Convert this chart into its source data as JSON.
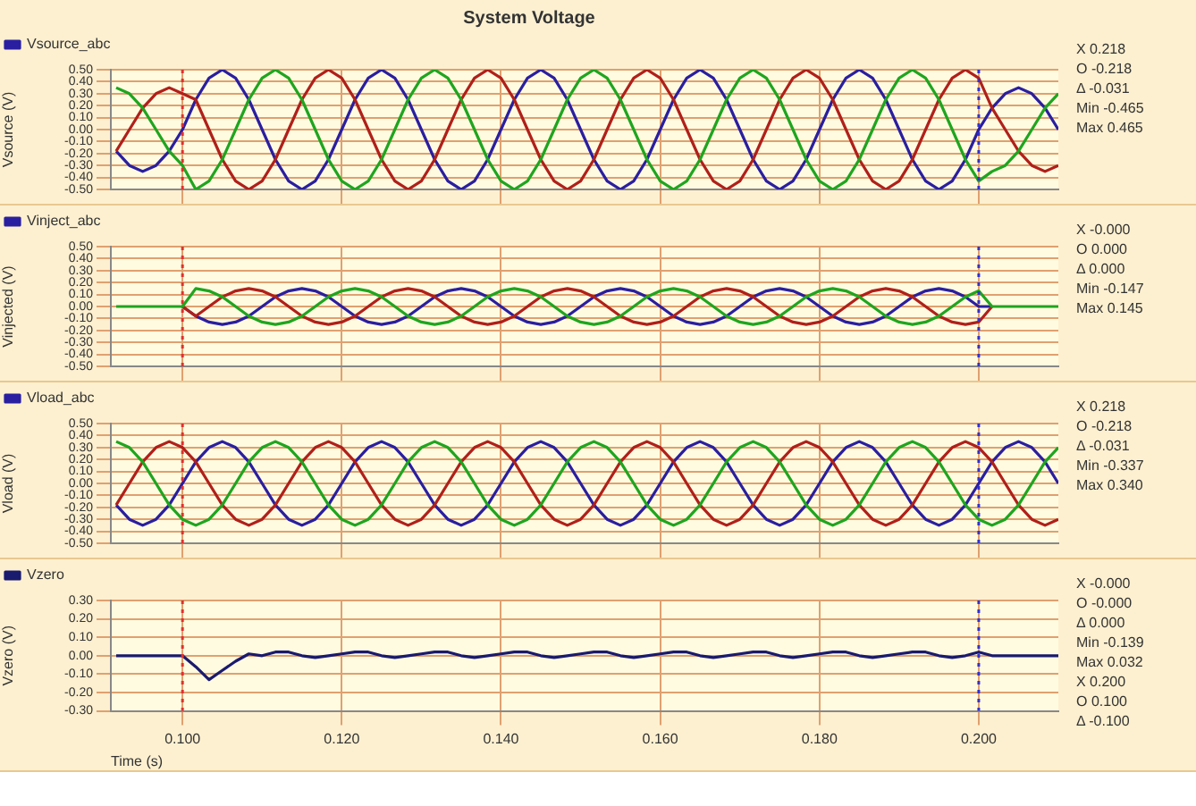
{
  "chart_data": [
    {
      "type": "line",
      "title": "System Voltage",
      "ylabel": "Vsource (V)",
      "legend": "top left",
      "grid": true,
      "marker": "none",
      "tick_labels": "y",
      "xlim": [
        0.091,
        0.21
      ],
      "xticks": [
        {
          "value": 0.1,
          "label": null
        },
        {
          "value": 0.12,
          "label": null
        },
        {
          "value": 0.14,
          "label": null
        },
        {
          "value": 0.16,
          "label": null
        },
        {
          "value": 0.18,
          "label": null
        },
        {
          "value": 0.2,
          "label": null
        }
      ],
      "ylim": [
        -0.5,
        0.5
      ],
      "yticks": [
        {
          "value": -0.5,
          "label": "-0.50"
        },
        {
          "value": -0.4,
          "label": "-0.40"
        },
        {
          "value": -0.3,
          "label": "-0.30"
        },
        {
          "value": -0.2,
          "label": "-0.20"
        },
        {
          "value": -0.1,
          "label": "-0.10"
        },
        {
          "value": 0,
          "label": "0.00"
        },
        {
          "value": 0.1,
          "label": "0.10"
        },
        {
          "value": 0.2,
          "label": "0.20"
        },
        {
          "value": 0.3,
          "label": "0.30"
        },
        {
          "value": 0.4,
          "label": "0.40"
        },
        {
          "value": 0.5,
          "label": "0.50"
        }
      ],
      "ref_lines": [
        {
          "axis": "x",
          "value": 0.1,
          "color": "#e03030",
          "line_style": "dotted"
        },
        {
          "axis": "x",
          "value": 0.2,
          "color": "#3030d0",
          "line_style": "dotted"
        }
      ],
      "annotations": [
        "X 0.218",
        "O -0.218",
        "Δ -0.031",
        "Min -0.465",
        "Max 0.465"
      ],
      "x": [
        0.09167,
        0.09333,
        0.095,
        0.09667,
        0.09833,
        0.1,
        0.10167,
        0.10333,
        0.105,
        0.10667,
        0.10833,
        0.11,
        0.11167,
        0.11333,
        0.115,
        0.11667,
        0.11833,
        0.12,
        0.12167,
        0.12333,
        0.125,
        0.12667,
        0.12833,
        0.13,
        0.13167,
        0.13333,
        0.135,
        0.13667,
        0.13833,
        0.14,
        0.14167,
        0.14333,
        0.145,
        0.14667,
        0.14833,
        0.15,
        0.15167,
        0.15333,
        0.155,
        0.15667,
        0.15833,
        0.16,
        0.16167,
        0.16333,
        0.165,
        0.16667,
        0.16833,
        0.17,
        0.17167,
        0.17333,
        0.175,
        0.17667,
        0.17833,
        0.18,
        0.18167,
        0.18333,
        0.185,
        0.18667,
        0.18833,
        0.19,
        0.19167,
        0.19333,
        0.195,
        0.19667,
        0.19833,
        0.2,
        0.20167,
        0.20333,
        0.205,
        0.20667,
        0.20833,
        0.21
      ],
      "series": [
        {
          "name": "Vsource_abc",
          "color": "#2a1fa0",
          "values": [
            -0.18,
            -0.3,
            -0.35,
            -0.3,
            -0.18,
            0,
            0.25,
            0.43,
            0.5,
            0.43,
            0.25,
            0,
            -0.25,
            -0.43,
            -0.5,
            -0.43,
            -0.25,
            0,
            0.25,
            0.43,
            0.5,
            0.43,
            0.25,
            0,
            -0.25,
            -0.43,
            -0.5,
            -0.43,
            -0.25,
            0,
            0.25,
            0.43,
            0.5,
            0.43,
            0.25,
            0,
            -0.25,
            -0.43,
            -0.5,
            -0.43,
            -0.25,
            0,
            0.25,
            0.43,
            0.5,
            0.43,
            0.25,
            0,
            -0.25,
            -0.43,
            -0.5,
            -0.43,
            -0.25,
            0,
            0.25,
            0.43,
            0.5,
            0.43,
            0.25,
            0,
            -0.25,
            -0.43,
            -0.5,
            -0.43,
            -0.25,
            0,
            0.18,
            0.3,
            0.35,
            0.3,
            0.18,
            0
          ]
        },
        {
          "color": "#b0201a",
          "values": [
            -0.18,
            0,
            0.18,
            0.3,
            0.35,
            0.3,
            0.25,
            0,
            -0.25,
            -0.43,
            -0.5,
            -0.43,
            -0.25,
            0,
            0.25,
            0.43,
            0.5,
            0.43,
            0.25,
            0,
            -0.25,
            -0.43,
            -0.5,
            -0.43,
            -0.25,
            0,
            0.25,
            0.43,
            0.5,
            0.43,
            0.25,
            0,
            -0.25,
            -0.43,
            -0.5,
            -0.43,
            -0.25,
            0,
            0.25,
            0.43,
            0.5,
            0.43,
            0.25,
            0,
            -0.25,
            -0.43,
            -0.5,
            -0.43,
            -0.25,
            0,
            0.25,
            0.43,
            0.5,
            0.43,
            0.25,
            0,
            -0.25,
            -0.43,
            -0.5,
            -0.43,
            -0.25,
            0,
            0.25,
            0.43,
            0.5,
            0.43,
            0.18,
            0,
            -0.18,
            -0.3,
            -0.35,
            -0.3
          ]
        },
        {
          "color": "#1fa51f",
          "values": [
            0.35,
            0.3,
            0.18,
            0,
            -0.18,
            -0.3,
            -0.5,
            -0.43,
            -0.25,
            0,
            0.25,
            0.43,
            0.5,
            0.43,
            0.25,
            0,
            -0.25,
            -0.43,
            -0.5,
            -0.43,
            -0.25,
            0,
            0.25,
            0.43,
            0.5,
            0.43,
            0.25,
            0,
            -0.25,
            -0.43,
            -0.5,
            -0.43,
            -0.25,
            0,
            0.25,
            0.43,
            0.5,
            0.43,
            0.25,
            0,
            -0.25,
            -0.43,
            -0.5,
            -0.43,
            -0.25,
            0,
            0.25,
            0.43,
            0.5,
            0.43,
            0.25,
            0,
            -0.25,
            -0.43,
            -0.5,
            -0.43,
            -0.25,
            0,
            0.25,
            0.43,
            0.5,
            0.43,
            0.25,
            0,
            -0.25,
            -0.43,
            -0.35,
            -0.3,
            -0.18,
            0,
            0.18,
            0.3
          ]
        }
      ]
    },
    {
      "type": "line",
      "ylabel": "Vinjected (V)",
      "legend": "top left",
      "grid": true,
      "marker": "none",
      "tick_labels": "y",
      "xlim": [
        0.091,
        0.21
      ],
      "xticks": [
        {
          "value": 0.1,
          "label": null
        },
        {
          "value": 0.12,
          "label": null
        },
        {
          "value": 0.14,
          "label": null
        },
        {
          "value": 0.16,
          "label": null
        },
        {
          "value": 0.18,
          "label": null
        },
        {
          "value": 0.2,
          "label": null
        }
      ],
      "ylim": [
        -0.5,
        0.5
      ],
      "yticks": [
        {
          "value": -0.5,
          "label": "-0.50"
        },
        {
          "value": -0.4,
          "label": "-0.40"
        },
        {
          "value": -0.3,
          "label": "-0.30"
        },
        {
          "value": -0.2,
          "label": "-0.20"
        },
        {
          "value": -0.1,
          "label": "-0.10"
        },
        {
          "value": 0,
          "label": "0.00"
        },
        {
          "value": 0.1,
          "label": "0.10"
        },
        {
          "value": 0.2,
          "label": "0.20"
        },
        {
          "value": 0.3,
          "label": "0.30"
        },
        {
          "value": 0.4,
          "label": "0.40"
        },
        {
          "value": 0.5,
          "label": "0.50"
        }
      ],
      "ref_lines": [
        {
          "axis": "x",
          "value": 0.1,
          "color": "#e03030",
          "line_style": "dotted"
        },
        {
          "axis": "x",
          "value": 0.2,
          "color": "#3030d0",
          "line_style": "dotted"
        }
      ],
      "annotations": [
        "X -0.000",
        "O 0.000",
        "Δ 0.000",
        "Min -0.147",
        "Max 0.145"
      ],
      "x": [
        0.09167,
        0.09333,
        0.095,
        0.09667,
        0.09833,
        0.1,
        0.10167,
        0.10333,
        0.105,
        0.10667,
        0.10833,
        0.11,
        0.11167,
        0.11333,
        0.115,
        0.11667,
        0.11833,
        0.12,
        0.12167,
        0.12333,
        0.125,
        0.12667,
        0.12833,
        0.13,
        0.13167,
        0.13333,
        0.135,
        0.13667,
        0.13833,
        0.14,
        0.14167,
        0.14333,
        0.145,
        0.14667,
        0.14833,
        0.15,
        0.15167,
        0.15333,
        0.155,
        0.15667,
        0.15833,
        0.16,
        0.16167,
        0.16333,
        0.165,
        0.16667,
        0.16833,
        0.17,
        0.17167,
        0.17333,
        0.175,
        0.17667,
        0.17833,
        0.18,
        0.18167,
        0.18333,
        0.185,
        0.18667,
        0.18833,
        0.19,
        0.19167,
        0.19333,
        0.195,
        0.19667,
        0.19833,
        0.2,
        0.20167,
        0.20333,
        0.205,
        0.20667,
        0.20833,
        0.21
      ],
      "series": [
        {
          "name": "Vinject_abc",
          "color": "#2a1fa0",
          "values": [
            null,
            null,
            null,
            null,
            null,
            0,
            -0.08,
            -0.13,
            -0.15,
            -0.13,
            -0.08,
            0,
            0.08,
            0.13,
            0.15,
            0.13,
            0.08,
            0,
            -0.08,
            -0.13,
            -0.15,
            -0.13,
            -0.08,
            0,
            0.08,
            0.13,
            0.15,
            0.13,
            0.08,
            0,
            -0.08,
            -0.13,
            -0.15,
            -0.13,
            -0.08,
            0,
            0.08,
            0.13,
            0.15,
            0.13,
            0.08,
            0,
            -0.08,
            -0.13,
            -0.15,
            -0.13,
            -0.08,
            0,
            0.08,
            0.13,
            0.15,
            0.13,
            0.08,
            0,
            -0.08,
            -0.13,
            -0.15,
            -0.13,
            -0.08,
            0,
            0.08,
            0.13,
            0.15,
            0.13,
            0.08,
            0,
            0,
            null,
            null,
            null,
            null,
            null
          ]
        },
        {
          "color": "#b0201a",
          "values": [
            null,
            null,
            null,
            null,
            null,
            0,
            -0.08,
            0,
            0.08,
            0.13,
            0.15,
            0.13,
            0.08,
            0,
            -0.08,
            -0.13,
            -0.15,
            -0.13,
            -0.08,
            0,
            0.08,
            0.13,
            0.15,
            0.13,
            0.08,
            0,
            -0.08,
            -0.13,
            -0.15,
            -0.13,
            -0.08,
            0,
            0.08,
            0.13,
            0.15,
            0.13,
            0.08,
            0,
            -0.08,
            -0.13,
            -0.15,
            -0.13,
            -0.08,
            0,
            0.08,
            0.13,
            0.15,
            0.13,
            0.08,
            0,
            -0.08,
            -0.13,
            -0.15,
            -0.13,
            -0.08,
            0,
            0.08,
            0.13,
            0.15,
            0.13,
            0.08,
            0,
            -0.08,
            -0.13,
            -0.15,
            -0.13,
            0,
            null,
            null,
            null,
            null,
            null
          ]
        },
        {
          "color": "#1fa51f",
          "values": [
            0,
            0,
            0,
            0,
            0,
            0,
            0.15,
            0.13,
            0.08,
            0,
            -0.08,
            -0.13,
            -0.15,
            -0.13,
            -0.08,
            0,
            0.08,
            0.13,
            0.15,
            0.13,
            0.08,
            0,
            -0.08,
            -0.13,
            -0.15,
            -0.13,
            -0.08,
            0,
            0.08,
            0.13,
            0.15,
            0.13,
            0.08,
            0,
            -0.08,
            -0.13,
            -0.15,
            -0.13,
            -0.08,
            0,
            0.08,
            0.13,
            0.15,
            0.13,
            0.08,
            0,
            -0.08,
            -0.13,
            -0.15,
            -0.13,
            -0.08,
            0,
            0.08,
            0.13,
            0.15,
            0.13,
            0.08,
            0,
            -0.08,
            -0.13,
            -0.15,
            -0.13,
            -0.08,
            0,
            0.08,
            0.13,
            0,
            0,
            0,
            0,
            0,
            0
          ]
        }
      ]
    },
    {
      "type": "line",
      "ylabel": "Vload (V)",
      "legend": "top left",
      "grid": true,
      "marker": "none",
      "tick_labels": "y",
      "xlim": [
        0.091,
        0.21
      ],
      "xticks": [
        {
          "value": 0.1,
          "label": null
        },
        {
          "value": 0.12,
          "label": null
        },
        {
          "value": 0.14,
          "label": null
        },
        {
          "value": 0.16,
          "label": null
        },
        {
          "value": 0.18,
          "label": null
        },
        {
          "value": 0.2,
          "label": null
        }
      ],
      "ylim": [
        -0.5,
        0.5
      ],
      "yticks": [
        {
          "value": -0.5,
          "label": "-0.50"
        },
        {
          "value": -0.4,
          "label": "-0.40"
        },
        {
          "value": -0.3,
          "label": "-0.30"
        },
        {
          "value": -0.2,
          "label": "-0.20"
        },
        {
          "value": -0.1,
          "label": "-0.10"
        },
        {
          "value": 0,
          "label": "0.00"
        },
        {
          "value": 0.1,
          "label": "0.10"
        },
        {
          "value": 0.2,
          "label": "0.20"
        },
        {
          "value": 0.3,
          "label": "0.30"
        },
        {
          "value": 0.4,
          "label": "0.40"
        },
        {
          "value": 0.5,
          "label": "0.50"
        }
      ],
      "ref_lines": [
        {
          "axis": "x",
          "value": 0.1,
          "color": "#e03030",
          "line_style": "dotted"
        },
        {
          "axis": "x",
          "value": 0.2,
          "color": "#3030d0",
          "line_style": "dotted"
        }
      ],
      "annotations": [
        "X 0.218",
        "O -0.218",
        "Δ -0.031",
        "Min -0.337",
        "Max 0.340"
      ],
      "x": [
        0.09167,
        0.09333,
        0.095,
        0.09667,
        0.09833,
        0.1,
        0.10167,
        0.10333,
        0.105,
        0.10667,
        0.10833,
        0.11,
        0.11167,
        0.11333,
        0.115,
        0.11667,
        0.11833,
        0.12,
        0.12167,
        0.12333,
        0.125,
        0.12667,
        0.12833,
        0.13,
        0.13167,
        0.13333,
        0.135,
        0.13667,
        0.13833,
        0.14,
        0.14167,
        0.14333,
        0.145,
        0.14667,
        0.14833,
        0.15,
        0.15167,
        0.15333,
        0.155,
        0.15667,
        0.15833,
        0.16,
        0.16167,
        0.16333,
        0.165,
        0.16667,
        0.16833,
        0.17,
        0.17167,
        0.17333,
        0.175,
        0.17667,
        0.17833,
        0.18,
        0.18167,
        0.18333,
        0.185,
        0.18667,
        0.18833,
        0.19,
        0.19167,
        0.19333,
        0.195,
        0.19667,
        0.19833,
        0.2,
        0.20167,
        0.20333,
        0.205,
        0.20667,
        0.20833,
        0.21
      ],
      "series": [
        {
          "name": "Vload_abc",
          "color": "#2a1fa0",
          "values": [
            -0.18,
            -0.3,
            -0.35,
            -0.3,
            -0.18,
            0,
            0.18,
            0.3,
            0.35,
            0.3,
            0.18,
            0,
            -0.18,
            -0.3,
            -0.35,
            -0.3,
            -0.18,
            0,
            0.18,
            0.3,
            0.35,
            0.3,
            0.18,
            0,
            -0.18,
            -0.3,
            -0.35,
            -0.3,
            -0.18,
            0,
            0.18,
            0.3,
            0.35,
            0.3,
            0.18,
            0,
            -0.18,
            -0.3,
            -0.35,
            -0.3,
            -0.18,
            0,
            0.18,
            0.3,
            0.35,
            0.3,
            0.18,
            0,
            -0.18,
            -0.3,
            -0.35,
            -0.3,
            -0.18,
            0,
            0.18,
            0.3,
            0.35,
            0.3,
            0.18,
            0,
            -0.18,
            -0.3,
            -0.35,
            -0.3,
            -0.18,
            0,
            0.18,
            0.3,
            0.35,
            0.3,
            0.18,
            0
          ]
        },
        {
          "color": "#b0201a",
          "values": [
            -0.18,
            0,
            0.18,
            0.3,
            0.35,
            0.3,
            0.18,
            0,
            -0.18,
            -0.3,
            -0.35,
            -0.3,
            -0.18,
            0,
            0.18,
            0.3,
            0.35,
            0.3,
            0.18,
            0,
            -0.18,
            -0.3,
            -0.35,
            -0.3,
            -0.18,
            0,
            0.18,
            0.3,
            0.35,
            0.3,
            0.18,
            0,
            -0.18,
            -0.3,
            -0.35,
            -0.3,
            -0.18,
            0,
            0.18,
            0.3,
            0.35,
            0.3,
            0.18,
            0,
            -0.18,
            -0.3,
            -0.35,
            -0.3,
            -0.18,
            0,
            0.18,
            0.3,
            0.35,
            0.3,
            0.18,
            0,
            -0.18,
            -0.3,
            -0.35,
            -0.3,
            -0.18,
            0,
            0.18,
            0.3,
            0.35,
            0.3,
            0.18,
            0,
            -0.18,
            -0.3,
            -0.35,
            -0.3
          ]
        },
        {
          "color": "#1fa51f",
          "values": [
            0.35,
            0.3,
            0.18,
            0,
            -0.18,
            -0.3,
            -0.35,
            -0.3,
            -0.18,
            0,
            0.18,
            0.3,
            0.35,
            0.3,
            0.18,
            0,
            -0.18,
            -0.3,
            -0.35,
            -0.3,
            -0.18,
            0,
            0.18,
            0.3,
            0.35,
            0.3,
            0.18,
            0,
            -0.18,
            -0.3,
            -0.35,
            -0.3,
            -0.18,
            0,
            0.18,
            0.3,
            0.35,
            0.3,
            0.18,
            0,
            -0.18,
            -0.3,
            -0.35,
            -0.3,
            -0.18,
            0,
            0.18,
            0.3,
            0.35,
            0.3,
            0.18,
            0,
            -0.18,
            -0.3,
            -0.35,
            -0.3,
            -0.18,
            0,
            0.18,
            0.3,
            0.35,
            0.3,
            0.18,
            0,
            -0.18,
            -0.3,
            -0.35,
            -0.3,
            -0.18,
            0,
            0.18,
            0.3
          ]
        }
      ]
    },
    {
      "type": "line",
      "ylabel": "Vzero (V)",
      "xlabel": "Time (s)",
      "legend": "top left",
      "grid": true,
      "marker": "none",
      "xlim": [
        0.091,
        0.21
      ],
      "xticks": [
        {
          "value": 0.1,
          "label": "0.100"
        },
        {
          "value": 0.12,
          "label": "0.120"
        },
        {
          "value": 0.14,
          "label": "0.140"
        },
        {
          "value": 0.16,
          "label": "0.160"
        },
        {
          "value": 0.18,
          "label": "0.180"
        },
        {
          "value": 0.2,
          "label": "0.200"
        }
      ],
      "ylim": [
        -0.3,
        0.3
      ],
      "yticks": [
        {
          "value": -0.3,
          "label": "-0.30"
        },
        {
          "value": -0.2,
          "label": "-0.20"
        },
        {
          "value": -0.1,
          "label": "-0.10"
        },
        {
          "value": 0,
          "label": "0.00"
        },
        {
          "value": 0.1,
          "label": "0.10"
        },
        {
          "value": 0.2,
          "label": "0.20"
        },
        {
          "value": 0.3,
          "label": "0.30"
        }
      ],
      "ref_lines": [
        {
          "axis": "x",
          "value": 0.1,
          "color": "#e03030",
          "line_style": "dotted"
        },
        {
          "axis": "x",
          "value": 0.2,
          "color": "#3030d0",
          "line_style": "dotted"
        }
      ],
      "annotations": [
        "X -0.000",
        "O -0.000",
        "Δ 0.000",
        "Min -0.139",
        "Max 0.032",
        "X 0.200",
        "O 0.100",
        "Δ -0.100"
      ],
      "x": [
        0.09167,
        0.09333,
        0.095,
        0.09667,
        0.09833,
        0.1,
        0.10167,
        0.10333,
        0.105,
        0.10667,
        0.10833,
        0.11,
        0.11167,
        0.11333,
        0.115,
        0.11667,
        0.11833,
        0.12,
        0.12167,
        0.12333,
        0.125,
        0.12667,
        0.12833,
        0.13,
        0.13167,
        0.13333,
        0.135,
        0.13667,
        0.13833,
        0.14,
        0.14167,
        0.14333,
        0.145,
        0.14667,
        0.14833,
        0.15,
        0.15167,
        0.15333,
        0.155,
        0.15667,
        0.15833,
        0.16,
        0.16167,
        0.16333,
        0.165,
        0.16667,
        0.16833,
        0.17,
        0.17167,
        0.17333,
        0.175,
        0.17667,
        0.17833,
        0.18,
        0.18167,
        0.18333,
        0.185,
        0.18667,
        0.18833,
        0.19,
        0.19167,
        0.19333,
        0.195,
        0.19667,
        0.19833,
        0.2,
        0.20167,
        0.20333,
        0.205,
        0.20667,
        0.20833,
        0.21
      ],
      "series": [
        {
          "name": "Vzero",
          "color": "#1a1a6e",
          "values": [
            0,
            0,
            0,
            0,
            0,
            0,
            -0.06,
            -0.13,
            -0.08,
            -0.03,
            0.01,
            0,
            0.02,
            0.02,
            0,
            -0.01,
            0,
            0.01,
            0.02,
            0.02,
            0,
            -0.01,
            0,
            0.01,
            0.02,
            0.02,
            0,
            -0.01,
            0,
            0.01,
            0.02,
            0.02,
            0,
            -0.01,
            0,
            0.01,
            0.02,
            0.02,
            0,
            -0.01,
            0,
            0.01,
            0.02,
            0.02,
            0,
            -0.01,
            0,
            0.01,
            0.02,
            0.02,
            0,
            -0.01,
            0,
            0.01,
            0.02,
            0.02,
            0,
            -0.01,
            0,
            0.01,
            0.02,
            0.02,
            0,
            -0.01,
            0,
            0.02,
            0,
            0,
            0,
            0,
            0,
            0
          ]
        }
      ]
    }
  ]
}
